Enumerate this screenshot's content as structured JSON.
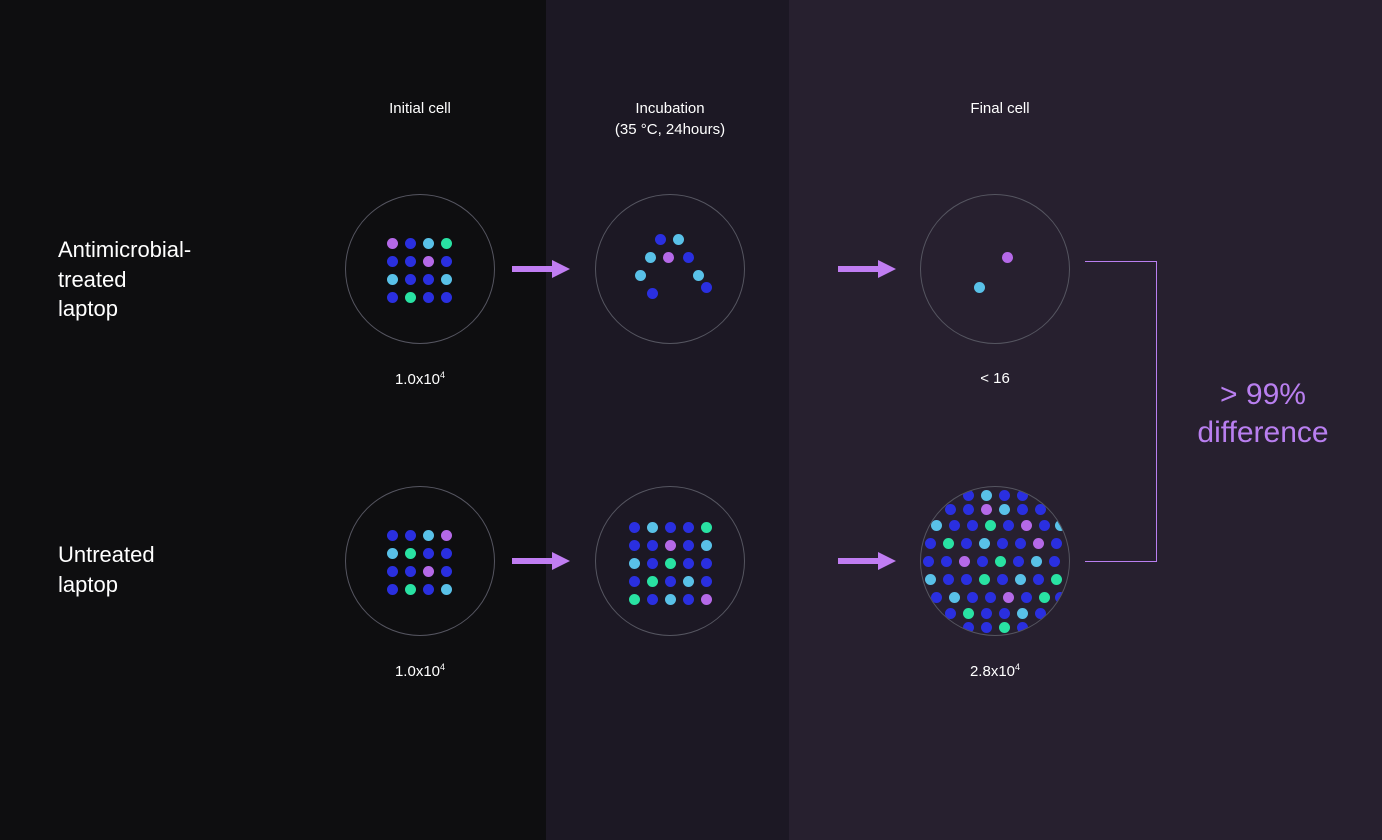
{
  "layout": {
    "panel_bg": [
      "#0e0e10",
      "#0e0e10",
      "#1c1824",
      "#27202f"
    ]
  },
  "columns": {
    "initial": "Initial cell",
    "incubation_line1": "Incubation",
    "incubation_line2": "(35 °C, 24hours)",
    "final": "Final cell"
  },
  "rows": {
    "treated_label": "Antimicrobial-\ntreated\nlaptop",
    "untreated_label": "Untreated\nlaptop"
  },
  "values": {
    "treated_initial_html": "1.0x10<sup>4</sup>",
    "treated_final": "< 16",
    "untreated_initial_html": "1.0x10<sup>4</sup>",
    "untreated_final_html": "2.8x10<sup>4</sup>"
  },
  "result": {
    "line1": "> 99%",
    "line2": "difference",
    "color": "#b97ff0"
  },
  "style": {
    "text_color": "#ffffff",
    "circle_border": "#555560",
    "arrow_fill": "#c07df2",
    "bracket_color": "#b97ff0",
    "dot_colors": {
      "blue": "#2a2fe0",
      "sky": "#59c1e8",
      "teal": "#29e2a3",
      "purple": "#b569e8"
    }
  },
  "petri": {
    "dot_radius": 5.5,
    "treated_initial": [
      [
        46,
        48,
        "purple"
      ],
      [
        64,
        48,
        "blue"
      ],
      [
        82,
        48,
        "sky"
      ],
      [
        100,
        48,
        "teal"
      ],
      [
        46,
        66,
        "blue"
      ],
      [
        64,
        66,
        "blue"
      ],
      [
        82,
        66,
        "purple"
      ],
      [
        100,
        66,
        "blue"
      ],
      [
        46,
        84,
        "sky"
      ],
      [
        64,
        84,
        "blue"
      ],
      [
        82,
        84,
        "blue"
      ],
      [
        100,
        84,
        "sky"
      ],
      [
        46,
        102,
        "blue"
      ],
      [
        64,
        102,
        "teal"
      ],
      [
        82,
        102,
        "blue"
      ],
      [
        100,
        102,
        "blue"
      ]
    ],
    "treated_incubation": [
      [
        64,
        44,
        "blue"
      ],
      [
        82,
        44,
        "sky"
      ],
      [
        54,
        62,
        "sky"
      ],
      [
        72,
        62,
        "purple"
      ],
      [
        92,
        62,
        "blue"
      ],
      [
        44,
        80,
        "sky"
      ],
      [
        102,
        80,
        "sky"
      ],
      [
        56,
        98,
        "blue"
      ],
      [
        110,
        92,
        "blue"
      ]
    ],
    "treated_final": [
      [
        58,
        92,
        "sky"
      ],
      [
        86,
        62,
        "purple"
      ]
    ],
    "untreated_initial": [
      [
        46,
        48,
        "blue"
      ],
      [
        64,
        48,
        "blue"
      ],
      [
        82,
        48,
        "sky"
      ],
      [
        100,
        48,
        "purple"
      ],
      [
        46,
        66,
        "sky"
      ],
      [
        64,
        66,
        "teal"
      ],
      [
        82,
        66,
        "blue"
      ],
      [
        100,
        66,
        "blue"
      ],
      [
        46,
        84,
        "blue"
      ],
      [
        64,
        84,
        "blue"
      ],
      [
        82,
        84,
        "purple"
      ],
      [
        100,
        84,
        "blue"
      ],
      [
        46,
        102,
        "blue"
      ],
      [
        64,
        102,
        "teal"
      ],
      [
        82,
        102,
        "blue"
      ],
      [
        100,
        102,
        "sky"
      ]
    ],
    "untreated_incubation": [
      [
        38,
        40,
        "blue"
      ],
      [
        56,
        40,
        "sky"
      ],
      [
        74,
        40,
        "blue"
      ],
      [
        92,
        40,
        "blue"
      ],
      [
        110,
        40,
        "teal"
      ],
      [
        38,
        58,
        "blue"
      ],
      [
        56,
        58,
        "blue"
      ],
      [
        74,
        58,
        "purple"
      ],
      [
        92,
        58,
        "blue"
      ],
      [
        110,
        58,
        "sky"
      ],
      [
        38,
        76,
        "sky"
      ],
      [
        56,
        76,
        "blue"
      ],
      [
        74,
        76,
        "teal"
      ],
      [
        92,
        76,
        "blue"
      ],
      [
        110,
        76,
        "blue"
      ],
      [
        38,
        94,
        "blue"
      ],
      [
        56,
        94,
        "teal"
      ],
      [
        74,
        94,
        "blue"
      ],
      [
        92,
        94,
        "sky"
      ],
      [
        110,
        94,
        "blue"
      ],
      [
        38,
        112,
        "teal"
      ],
      [
        56,
        112,
        "blue"
      ],
      [
        74,
        112,
        "sky"
      ],
      [
        92,
        112,
        "blue"
      ],
      [
        110,
        112,
        "purple"
      ]
    ],
    "untreated_final": [
      [
        47,
        8,
        "blue"
      ],
      [
        65,
        8,
        "sky"
      ],
      [
        83,
        8,
        "blue"
      ],
      [
        101,
        8,
        "blue"
      ],
      [
        29,
        22,
        "blue"
      ],
      [
        47,
        22,
        "blue"
      ],
      [
        65,
        22,
        "purple"
      ],
      [
        83,
        22,
        "sky"
      ],
      [
        101,
        22,
        "blue"
      ],
      [
        119,
        22,
        "blue"
      ],
      [
        15,
        38,
        "sky"
      ],
      [
        33,
        38,
        "blue"
      ],
      [
        51,
        38,
        "blue"
      ],
      [
        69,
        38,
        "teal"
      ],
      [
        87,
        38,
        "blue"
      ],
      [
        105,
        38,
        "purple"
      ],
      [
        123,
        38,
        "blue"
      ],
      [
        139,
        38,
        "sky"
      ],
      [
        9,
        56,
        "blue"
      ],
      [
        27,
        56,
        "teal"
      ],
      [
        45,
        56,
        "blue"
      ],
      [
        63,
        56,
        "sky"
      ],
      [
        81,
        56,
        "blue"
      ],
      [
        99,
        56,
        "blue"
      ],
      [
        117,
        56,
        "purple"
      ],
      [
        135,
        56,
        "blue"
      ],
      [
        7,
        74,
        "blue"
      ],
      [
        25,
        74,
        "blue"
      ],
      [
        43,
        74,
        "purple"
      ],
      [
        61,
        74,
        "blue"
      ],
      [
        79,
        74,
        "teal"
      ],
      [
        97,
        74,
        "blue"
      ],
      [
        115,
        74,
        "sky"
      ],
      [
        133,
        74,
        "blue"
      ],
      [
        9,
        92,
        "sky"
      ],
      [
        27,
        92,
        "blue"
      ],
      [
        45,
        92,
        "blue"
      ],
      [
        63,
        92,
        "teal"
      ],
      [
        81,
        92,
        "blue"
      ],
      [
        99,
        92,
        "sky"
      ],
      [
        117,
        92,
        "blue"
      ],
      [
        135,
        92,
        "teal"
      ],
      [
        15,
        110,
        "blue"
      ],
      [
        33,
        110,
        "sky"
      ],
      [
        51,
        110,
        "blue"
      ],
      [
        69,
        110,
        "blue"
      ],
      [
        87,
        110,
        "purple"
      ],
      [
        105,
        110,
        "blue"
      ],
      [
        123,
        110,
        "teal"
      ],
      [
        139,
        110,
        "blue"
      ],
      [
        29,
        126,
        "blue"
      ],
      [
        47,
        126,
        "teal"
      ],
      [
        65,
        126,
        "blue"
      ],
      [
        83,
        126,
        "blue"
      ],
      [
        101,
        126,
        "sky"
      ],
      [
        119,
        126,
        "blue"
      ],
      [
        47,
        140,
        "blue"
      ],
      [
        65,
        140,
        "blue"
      ],
      [
        83,
        140,
        "teal"
      ],
      [
        101,
        140,
        "blue"
      ]
    ]
  }
}
